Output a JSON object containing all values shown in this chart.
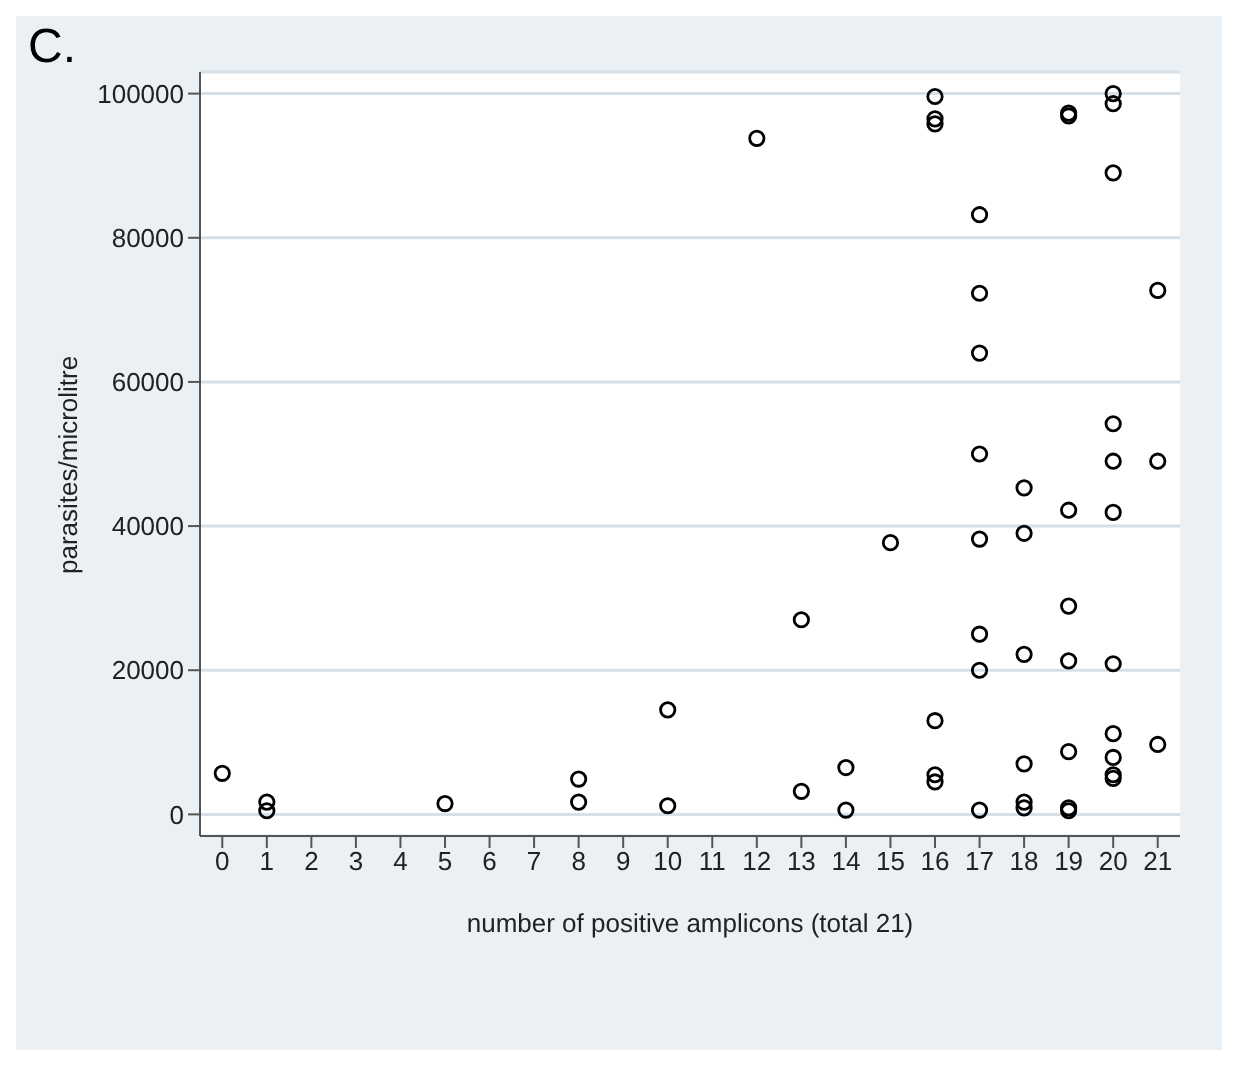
{
  "chart_data": {
    "type": "scatter",
    "title": "C.",
    "xlabel": "number of positive amplicons (total 21)",
    "ylabel": "parasites/microlitre",
    "x": [
      0,
      1,
      1,
      5,
      8,
      8,
      10,
      10,
      12,
      13,
      13,
      14,
      14,
      15,
      16,
      16,
      16,
      16,
      16,
      16,
      17,
      17,
      17,
      17,
      17,
      17,
      17,
      17,
      18,
      18,
      18,
      18,
      18,
      18,
      19,
      19,
      19,
      19,
      19,
      19,
      19,
      19,
      20,
      20,
      20,
      20,
      20,
      20,
      20,
      20,
      20,
      20,
      20,
      21,
      21,
      21
    ],
    "series": [
      {
        "color": "#000000",
        "values": [
          5700,
          1700,
          500,
          1500,
          4900,
          1700,
          14500,
          1200,
          93800,
          27000,
          3200,
          6500,
          600,
          37700,
          99600,
          96500,
          95800,
          13000,
          5500,
          4500,
          83200,
          72300,
          64000,
          50000,
          38200,
          25000,
          20000,
          600,
          45300,
          39000,
          22200,
          7000,
          1700,
          900,
          97300,
          96900,
          42200,
          28900,
          21300,
          8700,
          900,
          500,
          100000,
          98600,
          89000,
          54200,
          49000,
          41900,
          20900,
          11200,
          7900,
          5500,
          5000,
          72700,
          49000,
          9700
        ]
      }
    ],
    "xlim": [
      -0.5,
      21.5
    ],
    "xticks": [
      0,
      1,
      2,
      3,
      4,
      5,
      6,
      7,
      8,
      9,
      10,
      11,
      12,
      13,
      14,
      15,
      16,
      17,
      18,
      19,
      20,
      21
    ],
    "ylim": [
      -3000,
      103000
    ],
    "yticks": [
      0,
      20000,
      40000,
      60000,
      80000,
      100000
    ],
    "grid": "y",
    "marker": "circle"
  }
}
